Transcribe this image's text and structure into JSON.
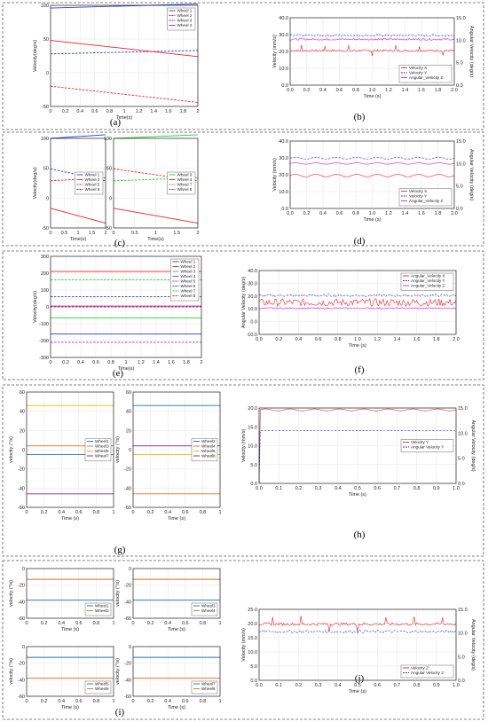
{
  "colors": {
    "blue": "#2a3bd8",
    "red": "#e8252a",
    "green": "#1fd02a",
    "purple": "#9b30d9",
    "magenta": "#e21adf",
    "mblue": "#1f6fb2",
    "orange": "#e86a10",
    "yellow": "#f0b400",
    "violet": "#7a1fa0"
  },
  "panels": [
    {
      "id": "a",
      "label": "(a)"
    },
    {
      "id": "b",
      "label": "(b)"
    },
    {
      "id": "c",
      "label": "(c)"
    },
    {
      "id": "d",
      "label": "(d)"
    },
    {
      "id": "e",
      "label": "(e)"
    },
    {
      "id": "f",
      "label": "(f)"
    },
    {
      "id": "g",
      "label": "(g)"
    },
    {
      "id": "h",
      "label": "(h)"
    },
    {
      "id": "i",
      "label": "(i)"
    },
    {
      "id": "j",
      "label": "(j)"
    }
  ],
  "chart_data": [
    {
      "id": "a",
      "type": "line",
      "ylabel": "Velocity(deg/s)",
      "xlabel": "Time(s)",
      "xlim": [
        0,
        2
      ],
      "ylim": [
        -50,
        100
      ],
      "xticks": [
        "0",
        "0.2",
        "0.4",
        "0.6",
        "0.8",
        "1",
        "1.2",
        "1.4",
        "1.6",
        "1.8",
        "2"
      ],
      "yticks": [
        "-50",
        "0",
        "50",
        "100"
      ],
      "legend_pos": "top-right",
      "series": [
        {
          "name": "Wheel 1",
          "color": "blue",
          "dash": false,
          "x": [
            0,
            2
          ],
          "y": [
            96,
            102
          ]
        },
        {
          "name": "Wheel 2",
          "color": "red",
          "dash": true,
          "x": [
            0,
            2
          ],
          "y": [
            -20,
            -44
          ]
        },
        {
          "name": "Wheel 3",
          "color": "blue",
          "dash": true,
          "x": [
            0,
            2
          ],
          "y": [
            28,
            33
          ]
        },
        {
          "name": "Wheel 4",
          "color": "red",
          "dash": false,
          "x": [
            0,
            2
          ],
          "y": [
            48,
            24
          ]
        }
      ]
    },
    {
      "id": "b",
      "type": "line",
      "ylabel": "Velocity (mm/s)",
      "ylabel2": "Angular Velocity (deg/s)",
      "xlabel": "Time (s)",
      "xlim": [
        0,
        2
      ],
      "ylim": [
        0,
        40
      ],
      "ylim2": [
        0,
        15
      ],
      "xticks": [
        "0.0",
        "0.2",
        "0.4",
        "0.6",
        "0.8",
        "1.0",
        "1.2",
        "1.4",
        "1.6",
        "1.8",
        "2.0"
      ],
      "yticks": [
        "0.0",
        "10.0",
        "20.0",
        "30.0",
        "40.0"
      ],
      "yticks2": [
        "0.0",
        "5.0",
        "10.0",
        "15.0"
      ],
      "legend_pos": "bottom-right",
      "series": [
        {
          "name": "Velocity X",
          "color": "red",
          "dash": false,
          "base": 20.5,
          "amp": 0.6,
          "spikes": true
        },
        {
          "name": "Velocity Y",
          "color": "blue",
          "dash": true,
          "base": 29.5,
          "amp": 0.6
        },
        {
          "name": "Angular_Velocity Z",
          "color": "magenta",
          "dash": false,
          "axis": 2,
          "base": 10.2,
          "amp": 0.2
        }
      ]
    },
    {
      "id": "c1",
      "type": "line",
      "ylabel": "Velocity(deg/s)",
      "xlabel": "Time(s)",
      "xlim": [
        0,
        2
      ],
      "ylim": [
        -50,
        100
      ],
      "xticks": [
        "0",
        "0.5",
        "1",
        "1.5",
        "2"
      ],
      "yticks": [
        "-50",
        "0",
        "50",
        "100"
      ],
      "legend_pos": "middle-right",
      "series": [
        {
          "name": "Wheel 1",
          "color": "blue",
          "dash": false,
          "x": [
            0,
            2
          ],
          "y": [
            100,
            106
          ]
        },
        {
          "name": "Wheel 2",
          "color": "red",
          "dash": false,
          "x": [
            0,
            2
          ],
          "y": [
            -17,
            -42
          ]
        },
        {
          "name": "Wheel 5",
          "color": "red",
          "dash": true,
          "x": [
            0,
            2
          ],
          "y": [
            29,
            34
          ]
        },
        {
          "name": "Wheel 6",
          "color": "blue",
          "dash": true,
          "x": [
            0,
            2
          ],
          "y": [
            49,
            29
          ]
        }
      ]
    },
    {
      "id": "c2",
      "type": "line",
      "ylabel": "",
      "xlabel": "Time(s)",
      "xlim": [
        0,
        2
      ],
      "ylim": [
        -50,
        100
      ],
      "xticks": [
        "0",
        "0.5",
        "1",
        "1.5",
        "2"
      ],
      "yticks": [
        "-50",
        "0",
        "50",
        "100"
      ],
      "legend_pos": "middle-right",
      "series": [
        {
          "name": "Wheel 3",
          "color": "green",
          "dash": false,
          "x": [
            0,
            2
          ],
          "y": [
            100,
            106
          ]
        },
        {
          "name": "Wheel 4",
          "color": "red",
          "dash": false,
          "x": [
            0,
            2
          ],
          "y": [
            -17,
            -42
          ]
        },
        {
          "name": "Wheel 7",
          "color": "green",
          "dash": true,
          "x": [
            0,
            2
          ],
          "y": [
            29,
            34
          ]
        },
        {
          "name": "Wheel 8",
          "color": "red",
          "dash": true,
          "x": [
            0,
            2
          ],
          "y": [
            49,
            29
          ]
        }
      ]
    },
    {
      "id": "d",
      "type": "line",
      "ylabel": "Velocity (mm/s)",
      "ylabel2": "Angular Velocity (deg/s)",
      "xlabel": "Time (s)",
      "xlim": [
        0,
        2
      ],
      "ylim": [
        0,
        40
      ],
      "ylim2": [
        0,
        15
      ],
      "xticks": [
        "0.0",
        "0.2",
        "0.4",
        "0.6",
        "0.8",
        "1.0",
        "1.2",
        "1.4",
        "1.6",
        "1.8",
        "2.0"
      ],
      "yticks": [
        "0.0",
        "10.0",
        "20.0",
        "30.0",
        "40.0"
      ],
      "yticks2": [
        "0.0",
        "5.0",
        "10.0",
        "15.0"
      ],
      "legend_pos": "bottom-right",
      "series": [
        {
          "name": "Velocity X",
          "color": "red",
          "dash": false,
          "base": 19.5,
          "amp": 0.8,
          "wave": true
        },
        {
          "name": "Velocity Y",
          "color": "blue",
          "dash": true,
          "base": 29.8,
          "amp": 0.6,
          "wave": true
        },
        {
          "name": "Angular_Velocity Z",
          "color": "magenta",
          "dash": false,
          "axis": 2,
          "base": 10.0,
          "amp": 0.15,
          "wave": true
        }
      ]
    },
    {
      "id": "e",
      "type": "line",
      "ylabel": "Velocity(deg/s)",
      "xlabel": "Time(s)",
      "xlim": [
        0,
        2
      ],
      "ylim": [
        -300,
        300
      ],
      "xticks": [
        "0",
        "0.2",
        "0.4",
        "0.6",
        "0.8",
        "1",
        "1.2",
        "1.4",
        "1.6",
        "1.8",
        "2"
      ],
      "yticks": [
        "-300",
        "-200",
        "-100",
        "0",
        "100",
        "200",
        "300"
      ],
      "legend_pos": "top-right",
      "series": [
        {
          "name": "Wheel 1",
          "color": "blue",
          "dash": false,
          "x": [
            0,
            2
          ],
          "y": [
            -160,
            -160
          ]
        },
        {
          "name": "Wheel 2",
          "color": "red",
          "dash": false,
          "x": [
            0,
            2
          ],
          "y": [
            210,
            210
          ]
        },
        {
          "name": "Wheel 3",
          "color": "green",
          "dash": false,
          "x": [
            0,
            2
          ],
          "y": [
            -65,
            -65
          ]
        },
        {
          "name": "Wheel 4",
          "color": "purple",
          "dash": false,
          "x": [
            0,
            2
          ],
          "y": [
            5,
            5
          ]
        },
        {
          "name": "Wheel 5",
          "color": "purple",
          "dash": true,
          "x": [
            0,
            2
          ],
          "y": [
            -210,
            -210
          ]
        },
        {
          "name": "Wheel 6",
          "color": "blue",
          "dash": true,
          "x": [
            0,
            2
          ],
          "y": [
            60,
            60
          ]
        },
        {
          "name": "Wheel 7",
          "color": "green",
          "dash": true,
          "x": [
            0,
            2
          ],
          "y": [
            160,
            160
          ]
        },
        {
          "name": "Wheel 8",
          "color": "red",
          "dash": true,
          "x": [
            0,
            2
          ],
          "y": [
            0,
            0
          ]
        }
      ]
    },
    {
      "id": "f",
      "type": "line",
      "ylabel": "Angular Velocity (deg/s)",
      "xlabel": "Time (s)",
      "xlim": [
        0,
        2
      ],
      "ylim": [
        -10,
        40
      ],
      "xticks": [
        "0.0",
        "0.2",
        "0.4",
        "0.6",
        "0.8",
        "1.0",
        "1.2",
        "1.4",
        "1.6",
        "1.8",
        "2.0"
      ],
      "yticks": [
        "-10.0",
        "0.0",
        "10.0",
        "20.0",
        "30.0",
        "40.0"
      ],
      "legend_pos": "top-right",
      "series": [
        {
          "name": "Angular_Velocity X",
          "color": "red",
          "dash": false,
          "base": 15,
          "amp": 3
        },
        {
          "name": "Angular_Velocity Y",
          "color": "blue",
          "dash": true,
          "base": 20.5,
          "amp": 1
        },
        {
          "name": "Angular_Velocity Z",
          "color": "magenta",
          "dash": false,
          "base": 10.5,
          "amp": 0.5
        }
      ]
    },
    {
      "id": "g1",
      "type": "line",
      "ylabel": "velocity (°/s)",
      "xlabel": "Time (s)",
      "xlim": [
        0,
        1
      ],
      "ylim": [
        -60,
        60
      ],
      "xticks": [
        "0",
        "0.2",
        "0.4",
        "0.6",
        "0.8",
        "1"
      ],
      "yticks": [
        "-60",
        "-40",
        "-20",
        "0",
        "20",
        "40",
        "60"
      ],
      "legend_pos": "right",
      "series": [
        {
          "name": "Wheel1",
          "color": "mblue",
          "dash": false,
          "x": [
            0,
            1
          ],
          "y": [
            -5,
            -5
          ]
        },
        {
          "name": "Wheel3",
          "color": "orange",
          "dash": false,
          "x": [
            0,
            1
          ],
          "y": [
            4,
            4
          ]
        },
        {
          "name": "Wheel5",
          "color": "yellow",
          "dash": false,
          "x": [
            0,
            1
          ],
          "y": [
            46,
            46
          ]
        },
        {
          "name": "Wheel7",
          "color": "violet",
          "dash": false,
          "x": [
            0,
            1
          ],
          "y": [
            -46,
            -46
          ]
        }
      ]
    },
    {
      "id": "g2",
      "type": "line",
      "ylabel": "velocity (°/s)",
      "xlabel": "Time (s)",
      "xlim": [
        0,
        1
      ],
      "ylim": [
        -60,
        60
      ],
      "xticks": [
        "0",
        "0.2",
        "0.4",
        "0.6",
        "0.8",
        "1"
      ],
      "yticks": [
        "-60",
        "-40",
        "-20",
        "0",
        "20",
        "40",
        "60"
      ],
      "legend_pos": "right",
      "series": [
        {
          "name": "Wheel2",
          "color": "mblue",
          "dash": false,
          "x": [
            0,
            1
          ],
          "y": [
            46,
            46
          ]
        },
        {
          "name": "Wheel4",
          "color": "orange",
          "dash": false,
          "x": [
            0,
            1
          ],
          "y": [
            -46,
            -46
          ]
        },
        {
          "name": "Wheel6",
          "color": "yellow",
          "dash": false,
          "x": [
            0,
            1
          ],
          "y": [
            -5,
            -5
          ]
        },
        {
          "name": "Wheel8",
          "color": "violet",
          "dash": false,
          "x": [
            0,
            1
          ],
          "y": [
            4,
            4
          ]
        }
      ]
    },
    {
      "id": "h",
      "type": "line",
      "ylabel": "Velocity (mm/s)",
      "ylabel2": "Angular Velocity (deg/s)",
      "xlabel": "Time (s)",
      "xlim": [
        0,
        1
      ],
      "ylim": [
        0,
        20
      ],
      "ylim2": [
        0,
        15
      ],
      "xticks": [
        "0.0",
        "0.1",
        "0.2",
        "0.3",
        "0.4",
        "0.5",
        "0.6",
        "0.7",
        "0.8",
        "0.9",
        "1.0"
      ],
      "yticks": [
        "0.0",
        "5.0",
        "10.0",
        "15.0",
        "20.0"
      ],
      "yticks2": [
        "0.0",
        "5.0",
        "10.0",
        "15.0"
      ],
      "legend_pos": "middle-right",
      "series": [
        {
          "name": "Velocity Y",
          "color": "red",
          "dash": false,
          "base": 19.5,
          "amp": 0.25,
          "wave": true,
          "rise": true
        },
        {
          "name": "Angular Velocity Y",
          "color": "blue",
          "dash": true,
          "axis": 2,
          "base": 10.5,
          "amp": 0.05,
          "rise": true
        }
      ]
    },
    {
      "id": "i1",
      "type": "line",
      "ylabel": "velocity (°/s)",
      "xlabel": "Time (s)",
      "xlim": [
        0,
        1
      ],
      "ylim": [
        -60,
        0
      ],
      "xticks": [
        "0",
        "0.2",
        "0.4",
        "0.6",
        "0.8",
        "1"
      ],
      "yticks": [
        "-60",
        "-40",
        "-20",
        "0"
      ],
      "legend_pos": "bottom-right",
      "series": [
        {
          "name": "Wheel1",
          "color": "mblue",
          "dash": false,
          "x": [
            0,
            1
          ],
          "y": [
            -38,
            -38
          ]
        },
        {
          "name": "Wheel2",
          "color": "orange",
          "dash": false,
          "x": [
            0,
            1
          ],
          "y": [
            -13,
            -13
          ]
        }
      ]
    },
    {
      "id": "i2",
      "type": "line",
      "ylabel": "velocity (°/s)",
      "xlabel": "Time (s)",
      "xlim": [
        0,
        1
      ],
      "ylim": [
        -60,
        0
      ],
      "xticks": [
        "0",
        "0.2",
        "0.4",
        "0.6",
        "0.8",
        "1"
      ],
      "yticks": [
        "-60",
        "-40",
        "-20",
        "0"
      ],
      "legend_pos": "bottom-right",
      "series": [
        {
          "name": "Wheel3",
          "color": "mblue",
          "dash": false,
          "x": [
            0,
            1
          ],
          "y": [
            -38,
            -38
          ]
        },
        {
          "name": "Wheel4",
          "color": "orange",
          "dash": false,
          "x": [
            0,
            1
          ],
          "y": [
            -13,
            -13
          ]
        }
      ]
    },
    {
      "id": "i3",
      "type": "line",
      "ylabel": "velocity (°/s)",
      "xlabel": "Time (s)",
      "xlim": [
        0,
        1
      ],
      "ylim": [
        -60,
        0
      ],
      "xticks": [
        "0",
        "0.2",
        "0.4",
        "0.6",
        "0.8",
        "1"
      ],
      "yticks": [
        "-60",
        "-40",
        "-20",
        "0"
      ],
      "legend_pos": "bottom-right",
      "series": [
        {
          "name": "Wheel5",
          "color": "mblue",
          "dash": false,
          "x": [
            0,
            1
          ],
          "y": [
            -13,
            -13
          ]
        },
        {
          "name": "Wheel6",
          "color": "orange",
          "dash": false,
          "x": [
            0,
            1
          ],
          "y": [
            -38,
            -38
          ]
        }
      ]
    },
    {
      "id": "i4",
      "type": "line",
      "ylabel": "velocity (°/s)",
      "xlabel": "Time (s)",
      "xlim": [
        0,
        1
      ],
      "ylim": [
        -60,
        0
      ],
      "xticks": [
        "0",
        "0.2",
        "0.4",
        "0.6",
        "0.8",
        "1"
      ],
      "yticks": [
        "-60",
        "-40",
        "-20",
        "0"
      ],
      "legend_pos": "bottom-right",
      "series": [
        {
          "name": "Wheel7",
          "color": "mblue",
          "dash": false,
          "x": [
            0,
            1
          ],
          "y": [
            -13,
            -13
          ]
        },
        {
          "name": "Wheel8",
          "color": "orange",
          "dash": false,
          "x": [
            0,
            1
          ],
          "y": [
            -38,
            -38
          ]
        }
      ]
    },
    {
      "id": "j",
      "type": "line",
      "ylabel": "Velocity (mm/s)",
      "ylabel2": "Angular Velocity (deg/s)",
      "xlabel": "Time (s)",
      "xlim": [
        0,
        1
      ],
      "ylim": [
        0,
        25
      ],
      "ylim2": [
        0,
        15
      ],
      "xticks": [
        "0.0",
        "0.1",
        "0.2",
        "0.3",
        "0.4",
        "0.5",
        "0.6",
        "0.7",
        "0.8",
        "0.9",
        "1.0"
      ],
      "yticks": [
        "0.0",
        "5.0",
        "10.0",
        "15.0",
        "20.0",
        "25.0"
      ],
      "yticks2": [
        "0.0",
        "5.0",
        "10.0",
        "15.0"
      ],
      "legend_pos": "bottom-right",
      "series": [
        {
          "name": "Velocity Z",
          "color": "red",
          "dash": false,
          "base": 19.8,
          "amp": 0.5,
          "spikes": true
        },
        {
          "name": "Angular Velocity Z",
          "color": "blue",
          "dash": true,
          "axis": 2,
          "base": 10.3,
          "amp": 0.3
        }
      ]
    }
  ]
}
